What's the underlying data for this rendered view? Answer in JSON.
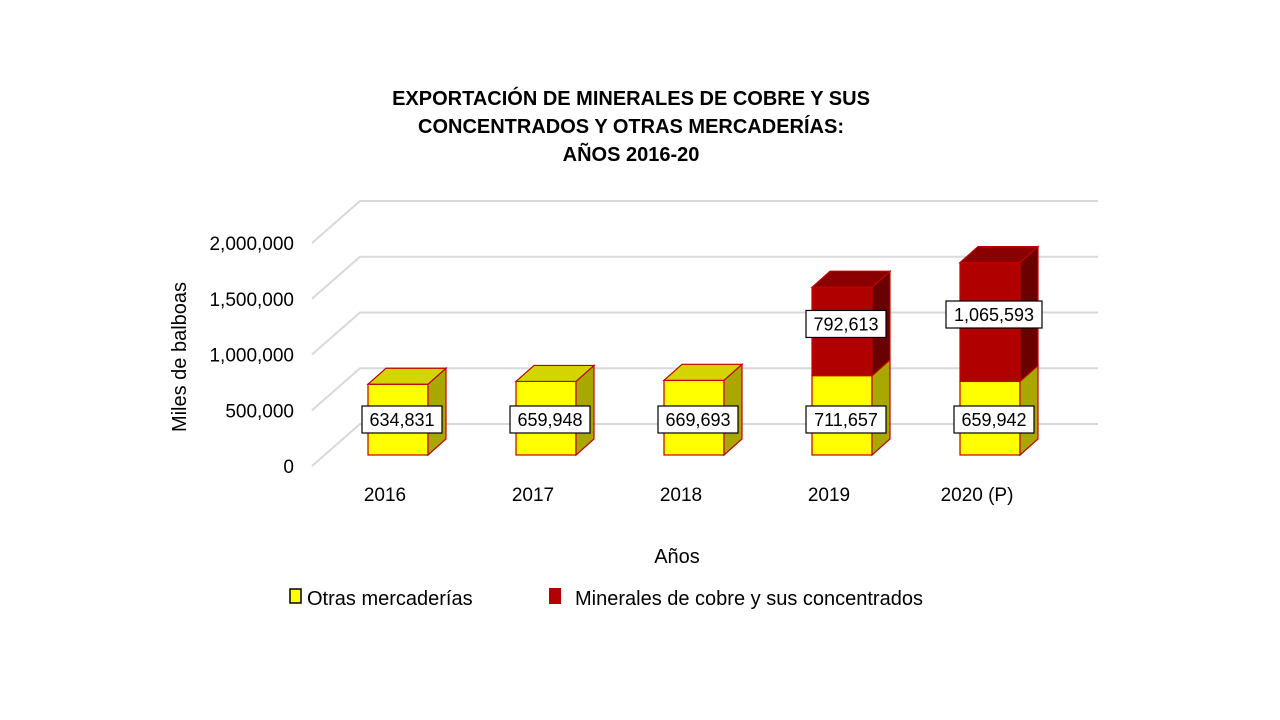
{
  "chart_data": {
    "type": "bar",
    "stacked": true,
    "three_d": true,
    "title": [
      "EXPORTACIÓN  DE MINERALES  DE COBRE  Y SUS",
      "CONCENTRADOS   Y OTRAS  MERCADERÍAS:",
      "AÑOS  2016-20"
    ],
    "xlabel": "Años",
    "ylabel": "Miles de balboas",
    "categories": [
      "2016",
      "2017",
      "2018",
      "2019",
      "2020 (P)"
    ],
    "yticks": [
      "0",
      "500,000",
      "1,000,000",
      "1,500,000",
      "2,000,000"
    ],
    "ytick_values": [
      0,
      500000,
      1000000,
      1500000,
      2000000
    ],
    "ylim": [
      0,
      2000000
    ],
    "grid": true,
    "legend_position": "bottom",
    "series": [
      {
        "name": "Otras mercaderías",
        "color": "#ffff00",
        "side_color": "#a8a800",
        "top_color": "#d4d400",
        "values": [
          634831,
          659948,
          669693,
          711657,
          659942
        ],
        "labels": [
          "634,831",
          "659,948",
          "669,693",
          "711,657",
          "659,942"
        ]
      },
      {
        "name": "Minerales de cobre y sus concentrados",
        "color": "#b00000",
        "side_color": "#6a0000",
        "top_color": "#8a0000",
        "values": [
          0,
          0,
          0,
          792613,
          1065593
        ],
        "labels": [
          "",
          "",
          "",
          "792,613",
          "1,065,593"
        ]
      }
    ]
  }
}
